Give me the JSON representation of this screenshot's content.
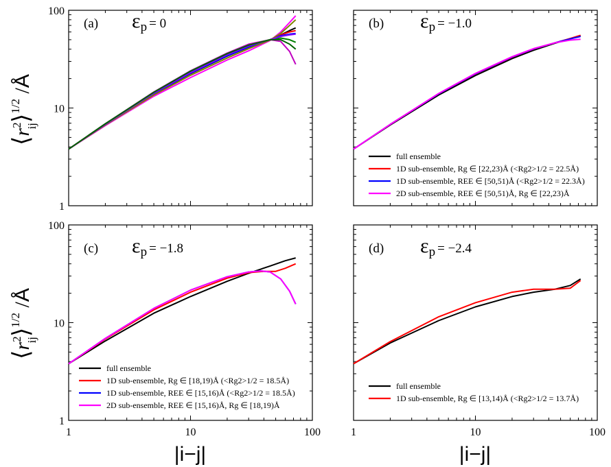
{
  "figure": {
    "xlabel": "|i−j|",
    "ylabel_main": "r",
    "ylabel_sup": "2",
    "ylabel_sub": "ij",
    "ylabel_exp": "1/2",
    "ylabel_unit": "Å"
  },
  "chart_data": [
    {
      "type": "line",
      "panel": "(a)",
      "annotation": "εp = 0",
      "eps_symbol": "ε",
      "eps_sub": "p",
      "eps_value": "= 0",
      "xscale": "log",
      "yscale": "log",
      "xlim": [
        1,
        100
      ],
      "ylim": [
        1,
        100
      ],
      "xticks": [
        1,
        10,
        100
      ],
      "yticks": [
        1,
        10,
        100
      ],
      "legend": [],
      "series": [
        {
          "color": "#000000",
          "x": [
            1,
            2,
            5,
            10,
            20,
            30,
            45,
            55,
            65,
            73
          ],
          "y": [
            3.8,
            6.8,
            14.0,
            22.5,
            34.0,
            42.0,
            50.0,
            56.0,
            62.0,
            66.0
          ]
        },
        {
          "color": "#ff0000",
          "x": [
            1,
            2,
            5,
            10,
            20,
            30,
            45,
            55,
            65,
            73
          ],
          "y": [
            3.8,
            6.8,
            14.1,
            22.8,
            34.5,
            42.5,
            50.0,
            56.0,
            60.0,
            62.0
          ]
        },
        {
          "color": "#0000ff",
          "x": [
            1,
            2,
            5,
            10,
            20,
            30,
            45,
            55,
            65,
            73
          ],
          "y": [
            3.8,
            6.8,
            14.0,
            22.7,
            34.2,
            42.2,
            50.0,
            55.0,
            57.0,
            58.0
          ]
        },
        {
          "color": "#ff00ff",
          "x": [
            1,
            2,
            5,
            10,
            20,
            30,
            45,
            55,
            65,
            73
          ],
          "y": [
            3.8,
            6.6,
            13.2,
            20.5,
            31.0,
            38.5,
            49.0,
            60.0,
            75.0,
            88.0
          ]
        },
        {
          "color": "#008000",
          "x": [
            1,
            2,
            5,
            10,
            20,
            30,
            45,
            55,
            65,
            73
          ],
          "y": [
            3.8,
            6.9,
            14.4,
            23.5,
            35.5,
            43.5,
            50.0,
            52.0,
            50.0,
            47.0
          ]
        },
        {
          "color": "#808000",
          "x": [
            1,
            2,
            5,
            10,
            20,
            30,
            45,
            55,
            65,
            73
          ],
          "y": [
            3.8,
            6.7,
            13.6,
            21.6,
            32.5,
            40.5,
            49.5,
            58.0,
            70.0,
            80.0
          ]
        },
        {
          "color": "#8000ff",
          "x": [
            1,
            2,
            5,
            10,
            20,
            30,
            45,
            55,
            65,
            73
          ],
          "y": [
            3.8,
            6.8,
            14.2,
            23.0,
            35.0,
            43.0,
            50.0,
            54.0,
            56.0,
            57.0
          ]
        },
        {
          "color": "#c000c0",
          "x": [
            1,
            2,
            5,
            10,
            20,
            30,
            45,
            55,
            65,
            73
          ],
          "y": [
            3.8,
            6.9,
            14.6,
            24.0,
            36.5,
            45.0,
            50.0,
            48.0,
            38.0,
            28.0
          ]
        },
        {
          "color": "#006400",
          "x": [
            1,
            2,
            5,
            10,
            20,
            30,
            45,
            55,
            65,
            73
          ],
          "y": [
            3.8,
            6.9,
            14.5,
            23.8,
            36.0,
            44.0,
            50.0,
            50.0,
            45.0,
            40.0
          ]
        }
      ]
    },
    {
      "type": "line",
      "panel": "(b)",
      "annotation": "εp = −1.0",
      "eps_symbol": "ε",
      "eps_sub": "p",
      "eps_value": "= −1.0",
      "xscale": "log",
      "yscale": "log",
      "xlim": [
        1,
        100
      ],
      "ylim": [
        1,
        100
      ],
      "xticks": [
        1,
        10,
        100
      ],
      "yticks": [
        1,
        10,
        100
      ],
      "legend": [
        {
          "color": "#000000",
          "text": "full ensemble"
        },
        {
          "color": "#ff0000",
          "text": "1D sub-ensemble, Rg ∈ [22,23)Å (<Rg2>1/2 = 22.5Å)"
        },
        {
          "color": "#0000ff",
          "text": "1D sub-ensemble, REE ∈ [50,51)Å (<Rg2>1/2 = 22.3Å)"
        },
        {
          "color": "#ff00ff",
          "text": "2D sub-ensemble, REE ∈ [50,51)Å,  Rg ∈ [22,23)Å"
        }
      ],
      "series": [
        {
          "name": "full ensemble",
          "color": "#000000",
          "x": [
            1,
            2,
            5,
            10,
            20,
            30,
            45,
            60,
            73
          ],
          "y": [
            3.8,
            6.7,
            13.6,
            21.5,
            32.0,
            39.0,
            46.0,
            51.0,
            55.0
          ]
        },
        {
          "name": "1D sub-ensemble, Rg ∈ [22,23)Å",
          "color": "#ff0000",
          "x": [
            1,
            2,
            5,
            10,
            20,
            30,
            45,
            60,
            73
          ],
          "y": [
            3.8,
            6.8,
            14.0,
            22.3,
            33.0,
            40.0,
            46.5,
            51.5,
            55.5
          ]
        },
        {
          "name": "1D sub-ensemble, REE ∈ [50,51)Å",
          "color": "#0000ff",
          "x": [
            1,
            2,
            5,
            10,
            20,
            30,
            45,
            60,
            73
          ],
          "y": [
            3.8,
            6.8,
            14.0,
            22.4,
            33.2,
            40.2,
            46.5,
            51.0,
            54.0
          ]
        },
        {
          "name": "2D sub-ensemble",
          "color": "#ff00ff",
          "x": [
            1,
            2,
            5,
            10,
            20,
            30,
            45,
            60,
            73
          ],
          "y": [
            3.8,
            6.8,
            14.1,
            22.6,
            33.5,
            40.5,
            46.5,
            49.5,
            50.5
          ]
        }
      ]
    },
    {
      "type": "line",
      "panel": "(c)",
      "annotation": "εp = −1.8",
      "eps_symbol": "ε",
      "eps_sub": "p",
      "eps_value": "= −1.8",
      "xscale": "log",
      "yscale": "log",
      "xlim": [
        1,
        100
      ],
      "ylim": [
        1,
        100
      ],
      "xticks": [
        1,
        10,
        100
      ],
      "yticks": [
        1,
        10,
        100
      ],
      "legend": [
        {
          "color": "#000000",
          "text": "full ensemble"
        },
        {
          "color": "#ff0000",
          "text": "1D sub-ensemble, Rg ∈ [18,19)Å (<Rg2>1/2 = 18.5Å)"
        },
        {
          "color": "#0000ff",
          "text": "1D sub-ensemble, REE ∈ [15,16)Å (<Rg2>1/2 = 18.5Å)"
        },
        {
          "color": "#ff00ff",
          "text": "2D sub-ensemble, REE ∈ [15,16)Å,  Rg ∈ [18,19)Å"
        }
      ],
      "series": [
        {
          "name": "full ensemble",
          "color": "#000000",
          "x": [
            1,
            2,
            5,
            10,
            20,
            30,
            45,
            60,
            73
          ],
          "y": [
            3.8,
            6.5,
            12.5,
            18.5,
            26.5,
            32.0,
            38.0,
            43.0,
            46.0
          ]
        },
        {
          "name": "1D sub-ensemble, Rg ∈ [18,19)Å",
          "color": "#ff0000",
          "x": [
            1,
            2,
            5,
            10,
            20,
            30,
            40,
            50,
            60,
            73
          ],
          "y": [
            3.8,
            6.8,
            13.5,
            20.5,
            28.5,
            32.5,
            33.5,
            33.5,
            36.0,
            40.0
          ]
        },
        {
          "name": "1D sub-ensemble, REE ∈ [15,16)Å",
          "color": "#0000ff",
          "x": [
            1,
            2,
            5,
            10,
            20,
            30,
            38,
            45,
            55,
            65,
            73
          ],
          "y": [
            3.8,
            6.9,
            14.0,
            21.5,
            29.5,
            33.0,
            33.8,
            33.0,
            28.0,
            21.0,
            15.5
          ]
        },
        {
          "name": "2D sub-ensemble",
          "color": "#ff00ff",
          "x": [
            1,
            2,
            5,
            10,
            20,
            30,
            38,
            45,
            55,
            65,
            73
          ],
          "y": [
            3.8,
            6.9,
            14.0,
            21.5,
            29.5,
            33.0,
            33.8,
            33.0,
            28.0,
            21.0,
            15.5
          ]
        }
      ]
    },
    {
      "type": "line",
      "panel": "(d)",
      "annotation": "εp = −2.4",
      "eps_symbol": "ε",
      "eps_sub": "p",
      "eps_value": "= −2.4",
      "xscale": "log",
      "yscale": "log",
      "xlim": [
        1,
        100
      ],
      "ylim": [
        1,
        100
      ],
      "xticks": [
        1,
        10,
        100
      ],
      "yticks": [
        1,
        10,
        100
      ],
      "legend": [
        {
          "color": "#000000",
          "text": "full ensemble"
        },
        {
          "color": "#ff0000",
          "text": "1D sub-ensemble, Rg ∈ [13,14)Å (<Rg2>1/2 = 13.7Å)"
        }
      ],
      "series": [
        {
          "name": "full ensemble",
          "color": "#000000",
          "x": [
            1,
            2,
            5,
            10,
            20,
            30,
            45,
            60,
            73
          ],
          "y": [
            3.8,
            6.2,
            10.5,
            14.5,
            18.5,
            20.5,
            22.0,
            24.0,
            28.0
          ]
        },
        {
          "name": "1D sub-ensemble, Rg ∈ [13,14)Å",
          "color": "#ff0000",
          "x": [
            1,
            2,
            5,
            10,
            20,
            30,
            45,
            60,
            73
          ],
          "y": [
            3.8,
            6.4,
            11.5,
            16.0,
            20.5,
            22.0,
            22.0,
            22.5,
            27.0
          ]
        }
      ]
    }
  ]
}
